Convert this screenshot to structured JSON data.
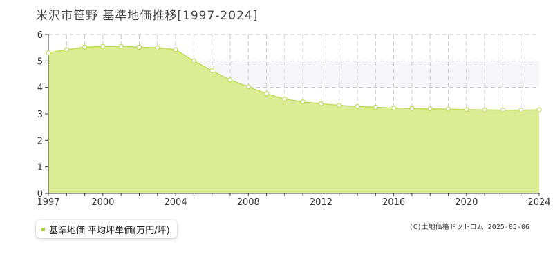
{
  "title": "米沢市笹野 基準地価推移[1997-2024]",
  "legend": {
    "label": "基準地価 平均坪単価(万円/坪)"
  },
  "copyright": "(C)土地価格ドットコム 2025-05-06",
  "colors": {
    "area_fill": "#dcec93",
    "line": "#bcdc5a",
    "marker_fill": "#ffffff",
    "band": "#f6f6f8",
    "grid": "#c8c8c8",
    "axis": "#333333",
    "legend_swatch": "#a8d13a"
  },
  "chart_data": {
    "type": "area",
    "title": "米沢市笹野 基準地価推移[1997-2024]",
    "xlabel": "",
    "ylabel": "",
    "x": [
      1997,
      1998,
      1999,
      2000,
      2001,
      2002,
      2003,
      2004,
      2005,
      2006,
      2007,
      2008,
      2009,
      2010,
      2011,
      2012,
      2013,
      2014,
      2015,
      2016,
      2017,
      2018,
      2019,
      2020,
      2021,
      2022,
      2023,
      2024
    ],
    "series": [
      {
        "name": "基準地価 平均坪単価(万円/坪)",
        "values": [
          5.3,
          5.43,
          5.52,
          5.55,
          5.55,
          5.52,
          5.5,
          5.43,
          5.0,
          4.63,
          4.28,
          4.02,
          3.76,
          3.56,
          3.45,
          3.38,
          3.32,
          3.28,
          3.25,
          3.22,
          3.2,
          3.19,
          3.18,
          3.16,
          3.15,
          3.14,
          3.14,
          3.15
        ]
      }
    ],
    "xlim": [
      1997,
      2024
    ],
    "ylim": [
      0,
      6
    ],
    "x_ticks": [
      "1997",
      "2000",
      "2004",
      "2008",
      "2012",
      "2016",
      "2020",
      "2024"
    ],
    "y_ticks": [
      "0",
      "1",
      "2",
      "3",
      "4",
      "5",
      "6"
    ],
    "grid": true,
    "legend_position": "bottom-left"
  }
}
